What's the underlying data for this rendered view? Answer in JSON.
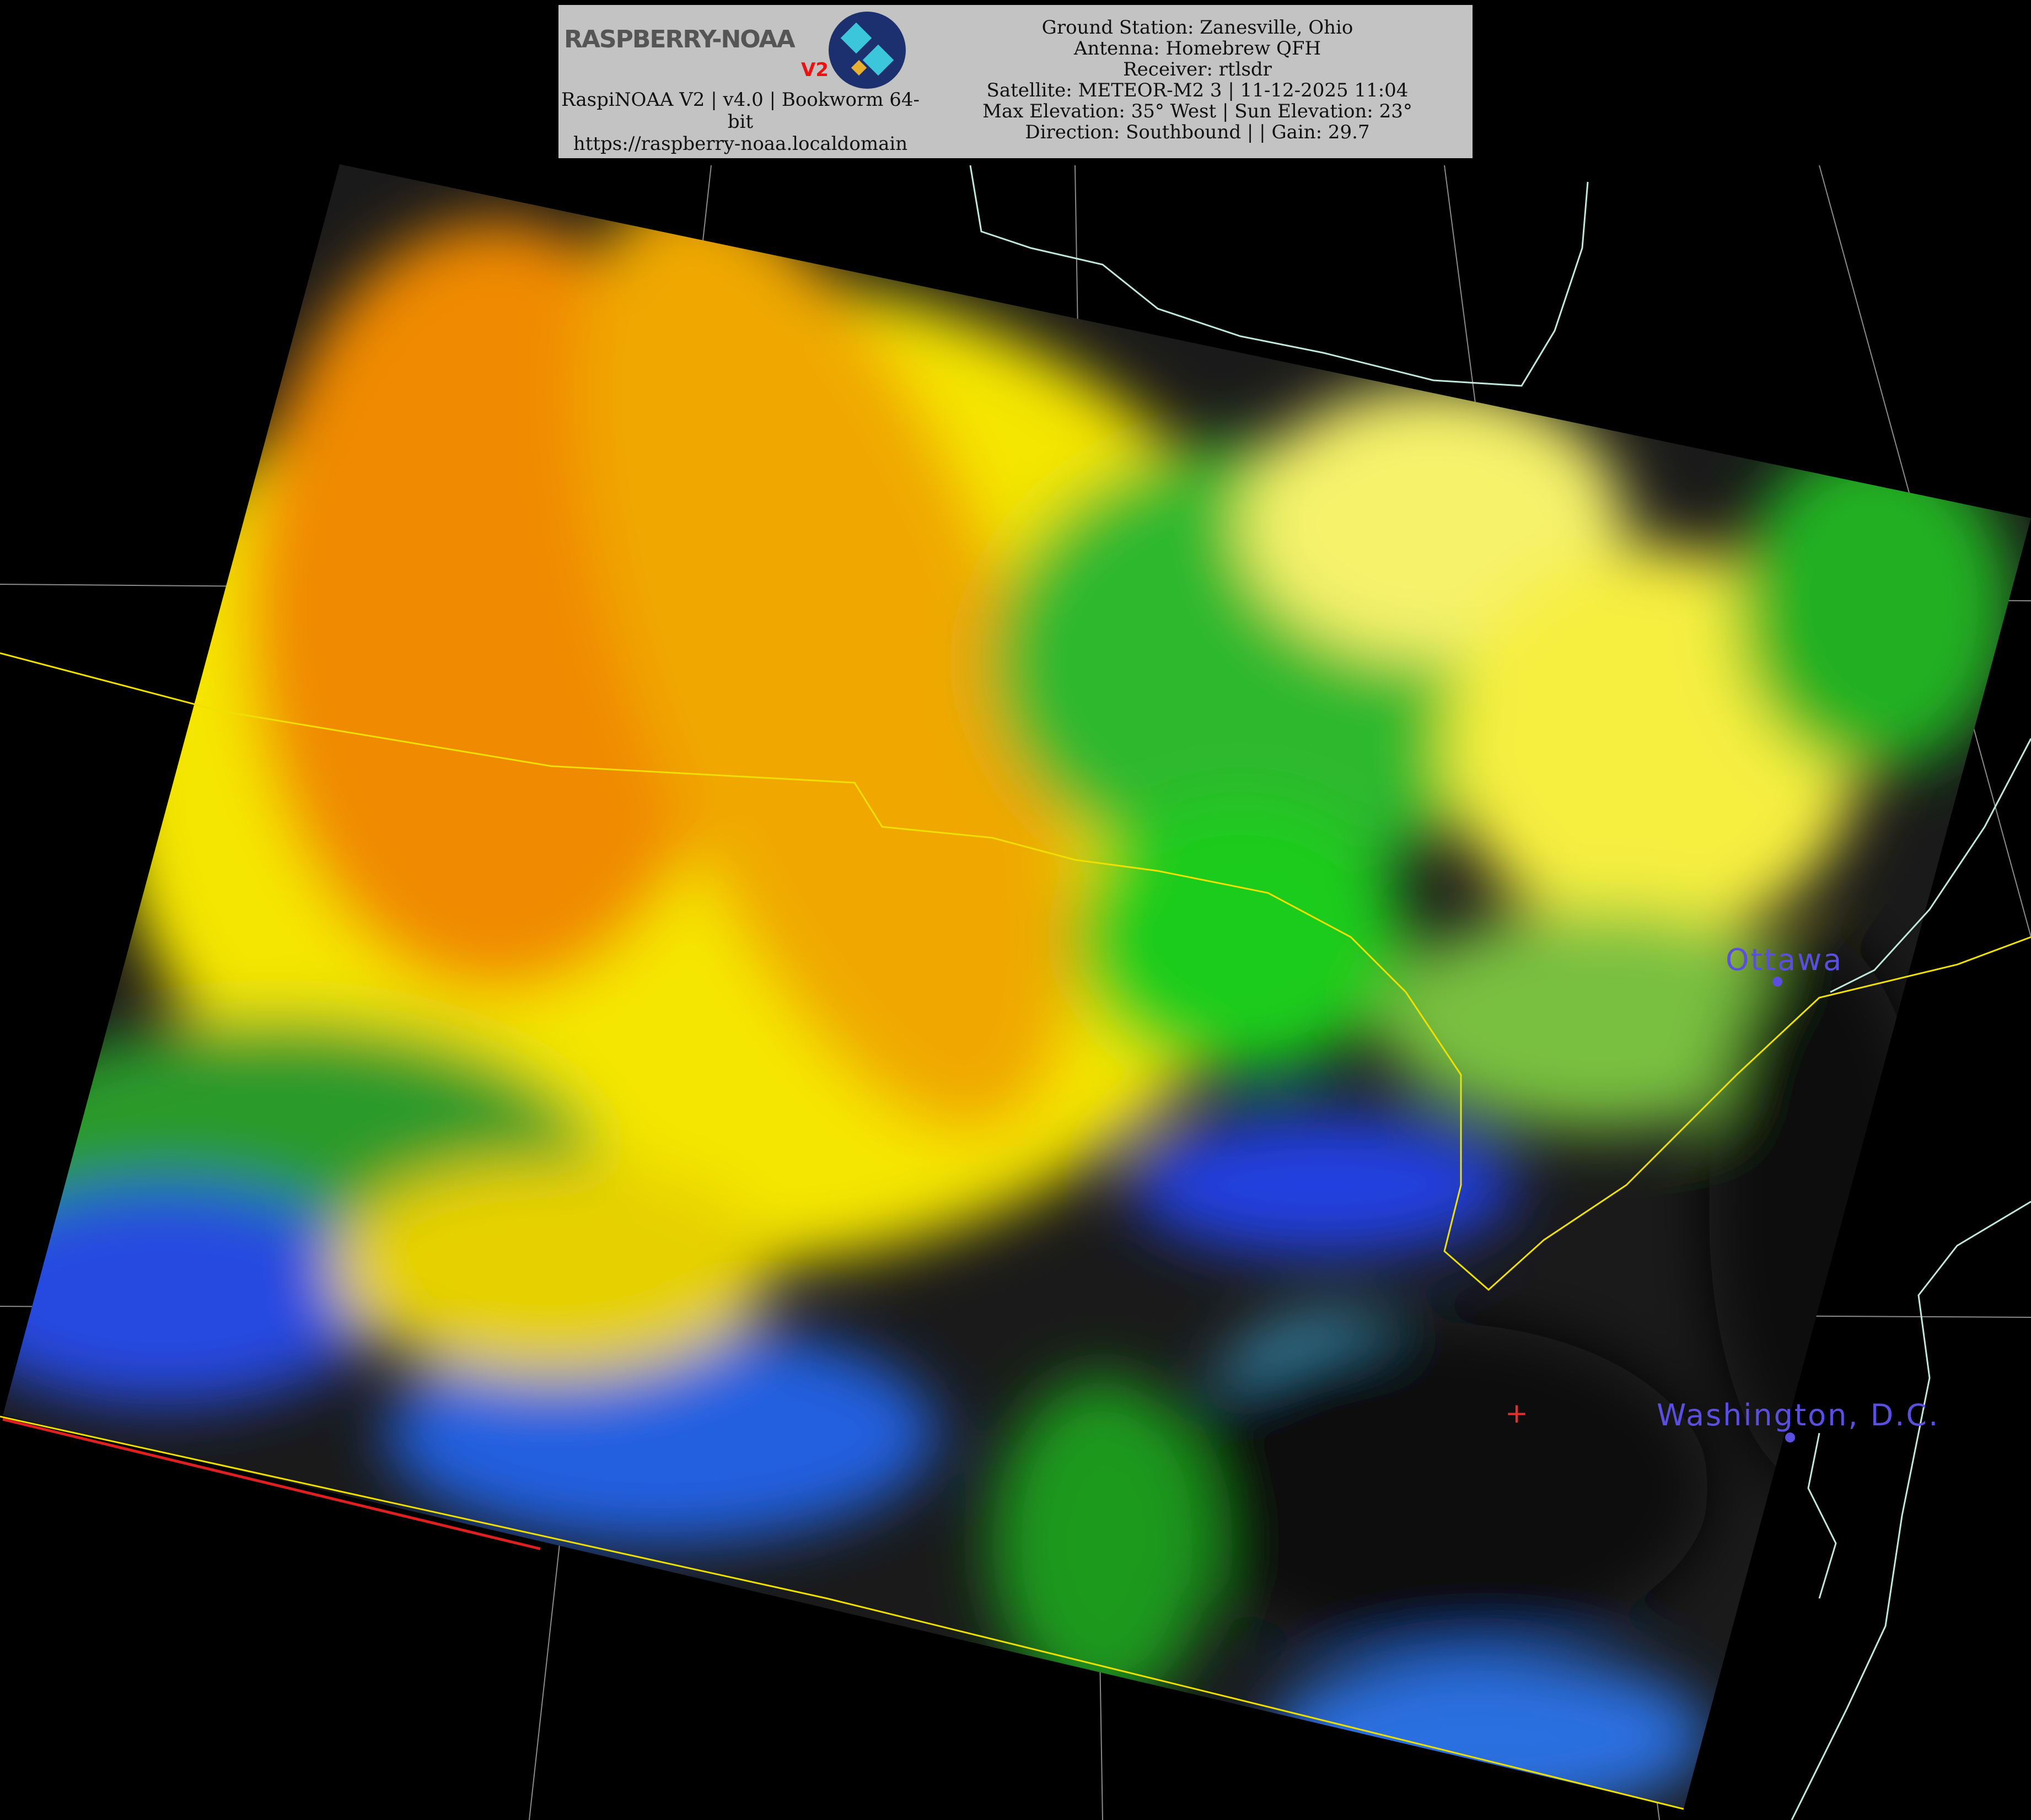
{
  "header": {
    "logo_text": "RASPBERRY-NOAA",
    "logo_version": "V2",
    "left_lines": [
      "RaspiNOAA V2 | v4.0 | Bookworm 64-bit",
      "https://raspberry-noaa.localdomain"
    ],
    "right_lines": [
      "Ground Station: Zanesville, Ohio",
      "Antenna: Homebrew QFH",
      "Receiver: rtlsdr",
      "Satellite: METEOR-M2 3 | 11-12-2025 11:04",
      "Max Elevation: 35° West | Sun Elevation: 23°",
      "Direction: Southbound | | Gain: 29.7"
    ]
  },
  "map": {
    "cities": [
      {
        "name": "Ottawa"
      },
      {
        "name": "Washington, D.C."
      }
    ],
    "ground_station_marker": "+",
    "colors": {
      "border_line": "#f0e000",
      "coastline": "#bfe8d8",
      "graticule": "#9a9a9a",
      "city_label": "#5a4fe0",
      "ground_marker": "#e03030"
    }
  }
}
